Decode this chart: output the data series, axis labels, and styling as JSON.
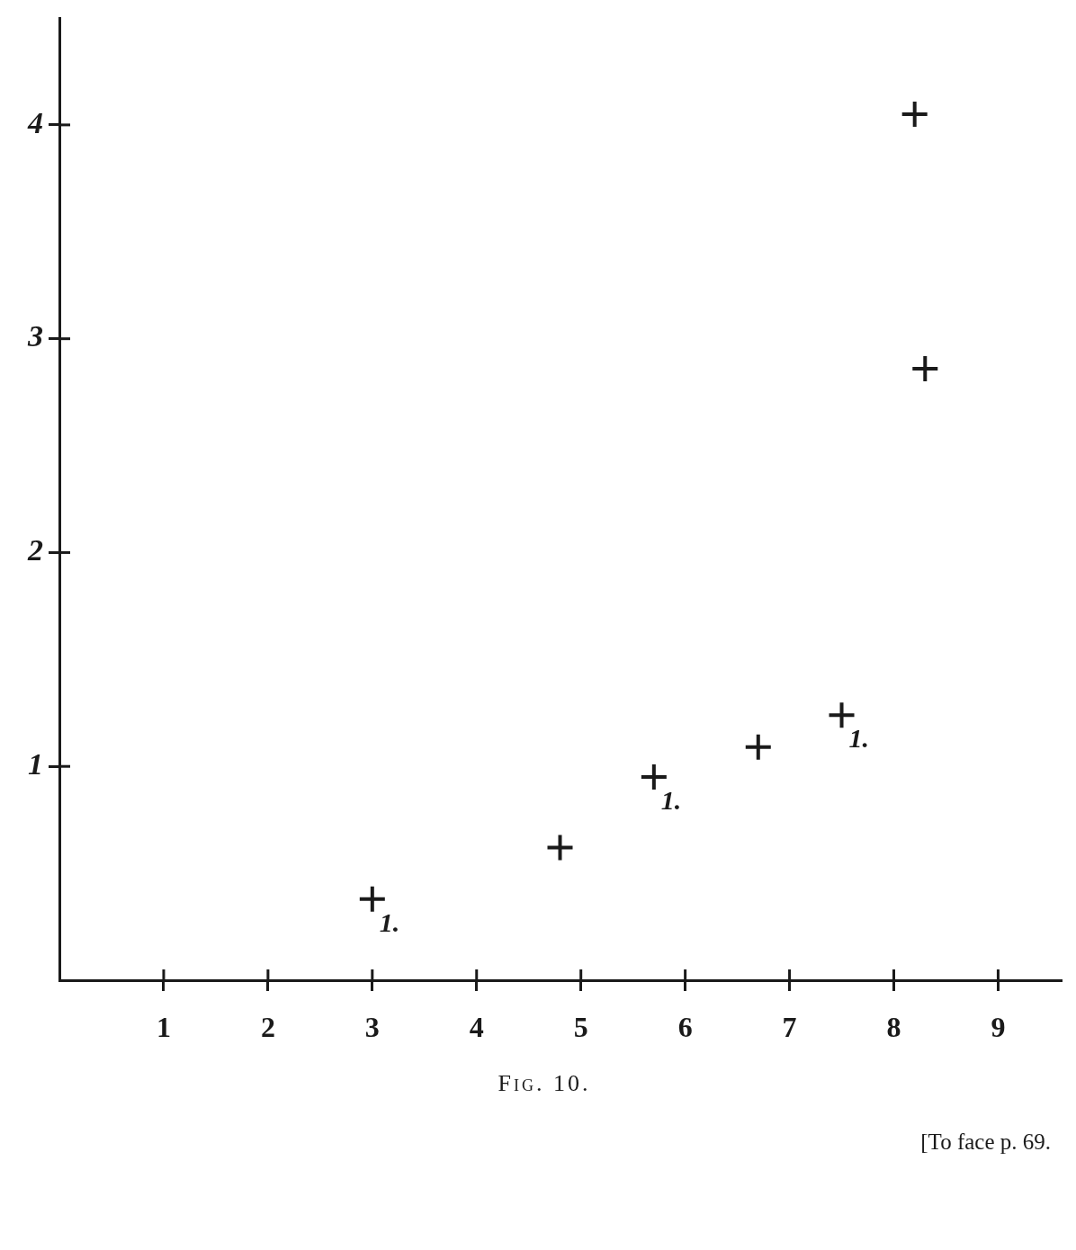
{
  "chart_data": {
    "type": "scatter",
    "x": [
      3.0,
      4.8,
      5.7,
      6.7,
      7.5,
      8.2,
      8.3
    ],
    "values": [
      0.38,
      0.62,
      0.95,
      1.09,
      1.24,
      4.05,
      2.86
    ],
    "color": "#1a1a1a",
    "marker": "cross",
    "xlim": [
      0,
      9.6
    ],
    "ylim": [
      0,
      4.5
    ],
    "xticks": [
      1,
      2,
      3,
      4,
      5,
      6,
      7,
      8,
      9
    ],
    "yticks": [
      1,
      2,
      3,
      4
    ],
    "grid": false,
    "legend": false,
    "annotations": [
      {
        "text": "1.",
        "x": 3.0,
        "y": 0.38
      },
      {
        "text": "1.",
        "x": 5.7,
        "y": 0.95
      },
      {
        "text": "1.",
        "x": 7.5,
        "y": 1.24
      },
      "Fig. 10.",
      "[To face p. 69."
    ]
  }
}
